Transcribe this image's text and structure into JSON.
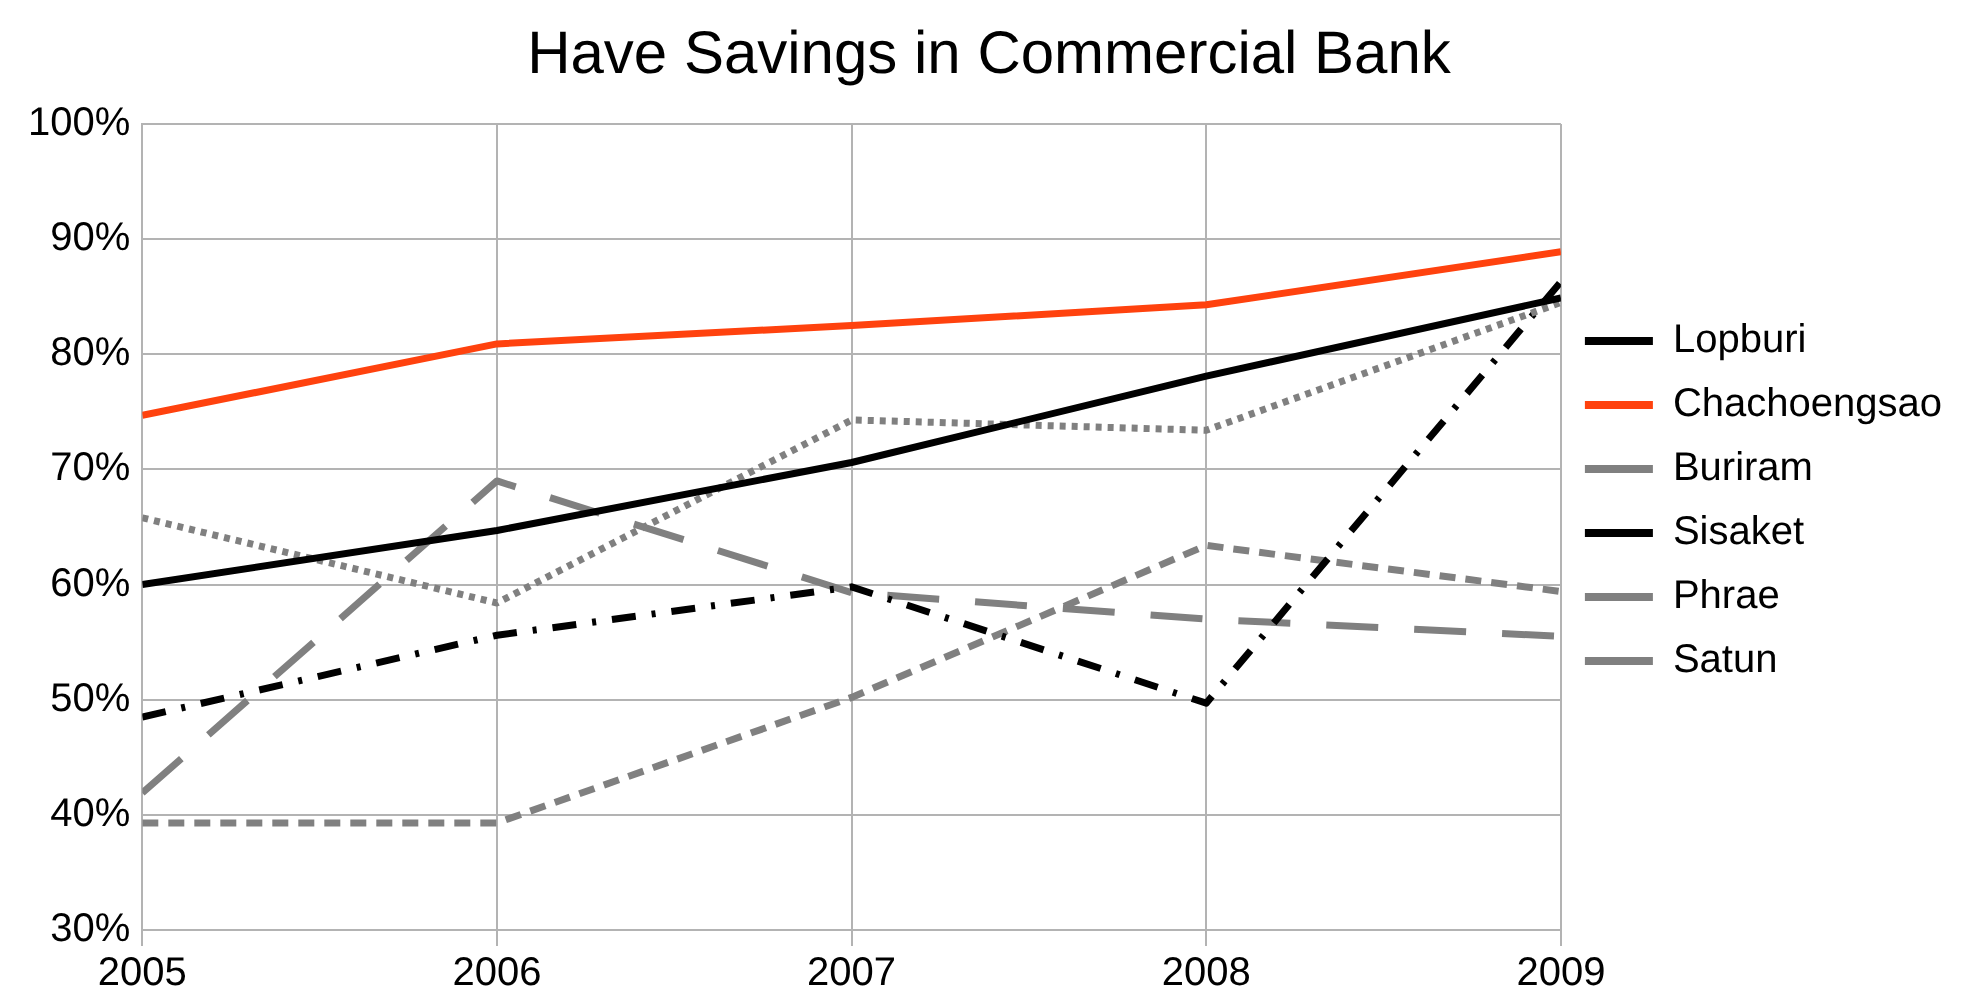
{
  "chart_data": {
    "type": "line",
    "title": "Have Savings in Commercial Bank",
    "x": [
      2005,
      2006,
      2007,
      2008,
      2009
    ],
    "series": [
      {
        "name": "Lopburi",
        "color": "#000000",
        "line_style": "solid",
        "values": [
          60.0,
          64.7,
          70.6,
          78.1,
          84.9
        ]
      },
      {
        "name": "Chachoengsao",
        "color": "#ff420e",
        "line_style": "solid",
        "values": [
          74.7,
          80.9,
          82.5,
          84.3,
          88.9
        ]
      },
      {
        "name": "Buriram",
        "color": "#808080",
        "line_style": "dotted",
        "values": [
          65.8,
          58.4,
          74.3,
          73.4,
          84.5
        ]
      },
      {
        "name": "Sisaket",
        "color": "#000000",
        "line_style": "dashdot",
        "values": [
          48.5,
          55.6,
          59.8,
          49.7,
          86.3
        ]
      },
      {
        "name": "Phrae",
        "color": "#808080",
        "line_style": "longdash",
        "values": [
          41.9,
          69.0,
          59.3,
          57.0,
          55.5
        ]
      },
      {
        "name": "Satun",
        "color": "#808080",
        "line_style": "dashed",
        "values": [
          39.3,
          39.3,
          50.2,
          63.4,
          59.4
        ]
      }
    ],
    "xlim": [
      2005,
      2009
    ],
    "xticks": [
      2005,
      2006,
      2007,
      2008,
      2009
    ],
    "ylim": [
      30,
      100
    ],
    "yticks": [
      {
        "value": 30,
        "label": "30%"
      },
      {
        "value": 40,
        "label": "40%"
      },
      {
        "value": 50,
        "label": "50%"
      },
      {
        "value": 60,
        "label": "60%"
      },
      {
        "value": 70,
        "label": "70%"
      },
      {
        "value": 80,
        "label": "80%"
      },
      {
        "value": 90,
        "label": "90%"
      },
      {
        "value": 100,
        "label": "100%"
      }
    ],
    "grid": true,
    "legend": "right",
    "marker": "none"
  }
}
